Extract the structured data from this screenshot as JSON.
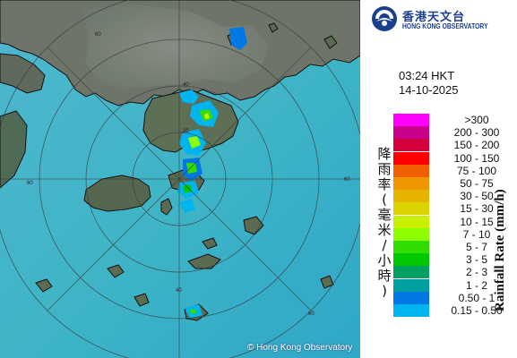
{
  "logo": {
    "name_zh": "香港天文台",
    "name_en": "HONG KONG OBSERVATORY"
  },
  "timestamp": {
    "time": "03:24 HKT",
    "date": "14-10-2025"
  },
  "map": {
    "range_ring_labels": [
      "20",
      "40",
      "60",
      "80"
    ],
    "copyright": "© Hong Kong Observatory"
  },
  "legend": {
    "title_en": "Rainfall Rate (mm/h)",
    "title_zh": [
      "降",
      "雨",
      "率",
      "(",
      "毫",
      "米",
      "/",
      "小",
      "時",
      ")"
    ],
    "items": [
      {
        "label": ">300",
        "color": "#ff00ff"
      },
      {
        "label": "200 - 300",
        "color": "#c8008c"
      },
      {
        "label": "150 - 200",
        "color": "#d4003c"
      },
      {
        "label": "100 - 150",
        "color": "#ff0000"
      },
      {
        "label": "75 - 100",
        "color": "#f06000"
      },
      {
        "label": "50 - 75",
        "color": "#f09600"
      },
      {
        "label": "30 - 50",
        "color": "#e6b400"
      },
      {
        "label": "15 - 30",
        "color": "#dcd200"
      },
      {
        "label": "10 - 15",
        "color": "#c8f000"
      },
      {
        "label": "7 - 10",
        "color": "#8cff00"
      },
      {
        "label": "5 - 7",
        "color": "#32dc00"
      },
      {
        "label": "3 - 5",
        "color": "#00c800"
      },
      {
        "label": "2 - 3",
        "color": "#00a060"
      },
      {
        "label": "1 - 2",
        "color": "#00a0a0"
      },
      {
        "label": "0.50 - 1",
        "color": "#0078e6"
      },
      {
        "label": "0.15 - 0.50",
        "color": "#00b4f0"
      }
    ]
  }
}
